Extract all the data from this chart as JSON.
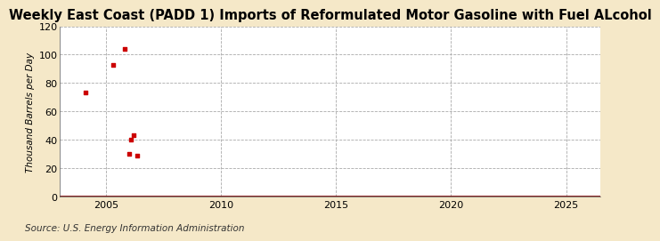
{
  "title": "Weekly East Coast (PADD 1) Imports of Reformulated Motor Gasoline with Fuel ALcohol",
  "ylabel": "Thousand Barrels per Day",
  "source": "Source: U.S. Energy Information Administration",
  "background_color": "#f5e8c8",
  "plot_bg_color": "#ffffff",
  "xlim": [
    2003.0,
    2026.5
  ],
  "ylim": [
    0,
    120
  ],
  "yticks": [
    0,
    20,
    40,
    60,
    80,
    100,
    120
  ],
  "xticks": [
    2005,
    2010,
    2015,
    2020,
    2025
  ],
  "data_x": [
    2004.1,
    2005.3,
    2005.8,
    2006.0,
    2006.1,
    2006.2,
    2006.35
  ],
  "data_y": [
    73,
    93,
    104,
    30,
    40,
    43,
    29
  ],
  "line_color": "#7a0000",
  "marker_color": "#cc0000",
  "title_fontsize": 10.5,
  "label_fontsize": 7.5,
  "tick_fontsize": 8,
  "source_fontsize": 7.5
}
